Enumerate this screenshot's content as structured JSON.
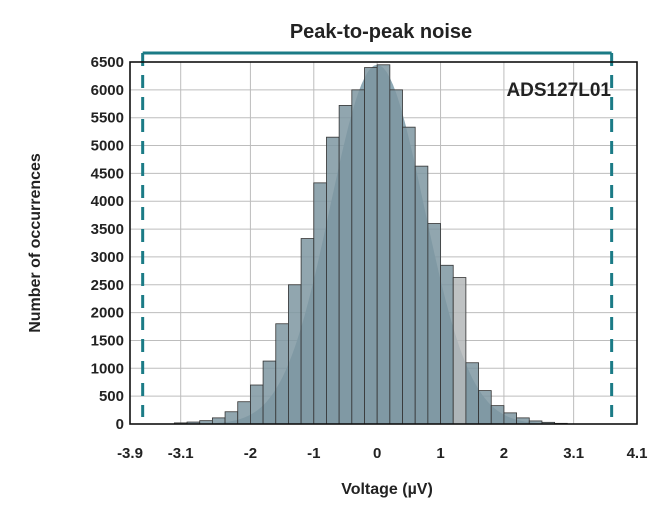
{
  "chart_data": {
    "type": "bar",
    "title": "Peak-to-peak noise",
    "xlabel": "Voltage (µV)",
    "ylabel": "Number of occurrences",
    "annotation": "ADS127L01",
    "xlim": [
      -3.9,
      4.1
    ],
    "ylim": [
      0,
      6500
    ],
    "x_tick_labels": [
      "-3.9",
      "-3.1",
      "-2",
      "-1",
      "0",
      "1",
      "2",
      "3.1",
      "4.1"
    ],
    "x_tick_values": [
      -3.9,
      -3.1,
      -2,
      -1,
      0,
      1,
      2,
      3.1,
      4.1
    ],
    "y_tick_values": [
      0,
      500,
      1000,
      1500,
      2000,
      2500,
      3000,
      3500,
      4000,
      4500,
      5000,
      5500,
      6000,
      6500
    ],
    "grid": true,
    "bin_width": 0.2,
    "bins": [
      {
        "x": -3.1,
        "count": 20
      },
      {
        "x": -2.9,
        "count": 35
      },
      {
        "x": -2.7,
        "count": 60
      },
      {
        "x": -2.5,
        "count": 110
      },
      {
        "x": -2.3,
        "count": 220
      },
      {
        "x": -2.1,
        "count": 400
      },
      {
        "x": -1.9,
        "count": 700
      },
      {
        "x": -1.7,
        "count": 1130
      },
      {
        "x": -1.5,
        "count": 1800
      },
      {
        "x": -1.3,
        "count": 2500
      },
      {
        "x": -1.1,
        "count": 3330
      },
      {
        "x": -0.9,
        "count": 4330
      },
      {
        "x": -0.7,
        "count": 5150
      },
      {
        "x": -0.5,
        "count": 5720
      },
      {
        "x": -0.3,
        "count": 6000
      },
      {
        "x": -0.1,
        "count": 6400
      },
      {
        "x": 0.1,
        "count": 6450
      },
      {
        "x": 0.3,
        "count": 6000
      },
      {
        "x": 0.5,
        "count": 5330
      },
      {
        "x": 0.7,
        "count": 4630
      },
      {
        "x": 0.9,
        "count": 3600
      },
      {
        "x": 1.1,
        "count": 2850
      },
      {
        "x": 1.3,
        "count": 2630
      },
      {
        "x": 1.5,
        "count": 1100
      },
      {
        "x": 1.7,
        "count": 600
      },
      {
        "x": 1.9,
        "count": 330
      },
      {
        "x": 2.1,
        "count": 200
      },
      {
        "x": 2.3,
        "count": 110
      },
      {
        "x": 2.5,
        "count": 55
      },
      {
        "x": 2.7,
        "count": 30
      },
      {
        "x": 2.9,
        "count": 12
      }
    ],
    "fit_curve": {
      "mean": 0,
      "sigma": 0.74,
      "peak": 6450
    },
    "peak_to_peak_range": [
      -3.7,
      3.7
    ],
    "colors": {
      "bar_fill": "#7e97a1",
      "bar_highlight": "#b4b7b9",
      "bar_edge": "#333333",
      "curve_fill": "#8ea9b5",
      "bracket": "#1b7b86",
      "grid": "#bdbdbd",
      "axes": "#111111"
    }
  }
}
